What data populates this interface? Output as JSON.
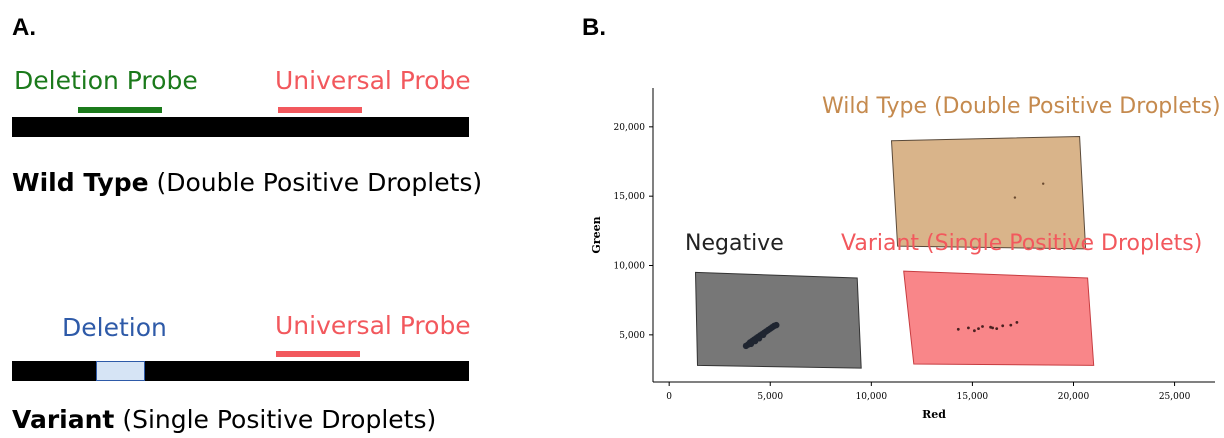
{
  "panel_a": {
    "label": "A.",
    "wild_type": {
      "probe_left": "Deletion Probe",
      "probe_right": "Universal Probe",
      "caption_bold": "Wild Type",
      "caption_rest": " (Double Positive Droplets)"
    },
    "variant": {
      "probe_left": "Deletion",
      "probe_right": "Universal Probe",
      "caption_bold": "Variant",
      "caption_rest": " (Single Positive Droplets)"
    },
    "colors": {
      "deletion_probe": "#1b7a1b",
      "universal_probe": "#f2585d",
      "deletion": "#2e5aa8",
      "deletion_box_fill": "#d6e4f5"
    }
  },
  "panel_b": {
    "label": "B.",
    "regions": {
      "wild_type": "Wild Type (Double Positive Droplets)",
      "negative": "Negative",
      "variant": "Variant (Single Positive Droplets)"
    },
    "colors": {
      "wild_type": "#c58a4e",
      "wild_type_fill": "#d9b48a",
      "negative_fill": "#777777",
      "variant": "#f2585d",
      "variant_fill": "#f98689"
    }
  },
  "chart_data": {
    "type": "scatter",
    "title": "",
    "xlabel": "Red",
    "ylabel": "Green",
    "xlim": [
      -800,
      27000
    ],
    "ylim": [
      1600,
      22800
    ],
    "x_ticks": [
      "0",
      "5,000",
      "10,000",
      "15,000",
      "20,000",
      "25,000"
    ],
    "x_tick_values": [
      0,
      5000,
      10000,
      15000,
      20000,
      25000
    ],
    "y_ticks": [
      "5,000",
      "10,000",
      "15,000",
      "20,000"
    ],
    "y_tick_values": [
      5000,
      10000,
      15000,
      20000
    ],
    "gates": [
      {
        "name": "Wild Type (Double Positive Droplets)",
        "polygon": [
          [
            11000,
            19000
          ],
          [
            20300,
            19300
          ],
          [
            20600,
            11200
          ],
          [
            11300,
            11400
          ]
        ]
      },
      {
        "name": "Negative",
        "polygon": [
          [
            1300,
            9500
          ],
          [
            9300,
            9100
          ],
          [
            9500,
            2600
          ],
          [
            1400,
            2800
          ]
        ]
      },
      {
        "name": "Variant (Single Positive Droplets)",
        "polygon": [
          [
            11600,
            9600
          ],
          [
            20700,
            9100
          ],
          [
            21000,
            2800
          ],
          [
            12100,
            2900
          ]
        ]
      }
    ],
    "series": [
      {
        "name": "Negative",
        "x": [
          3800,
          3900,
          4000,
          4100,
          4200,
          4300,
          4400,
          4500,
          4600,
          4700,
          4800,
          4900,
          5000,
          5100,
          5200,
          5300,
          4050,
          4250,
          4450,
          4650
        ],
        "y": [
          4200,
          4300,
          4450,
          4550,
          4650,
          4750,
          4850,
          4950,
          5050,
          5150,
          5250,
          5350,
          5450,
          5550,
          5650,
          5700,
          4350,
          4550,
          4750,
          5000
        ]
      },
      {
        "name": "Variant (Single Positive Droplets)",
        "x": [
          14300,
          14800,
          15100,
          15500,
          15900,
          16200,
          16500,
          16900,
          17200,
          15300,
          16000
        ],
        "y": [
          5400,
          5500,
          5300,
          5600,
          5550,
          5450,
          5650,
          5700,
          5900,
          5450,
          5500
        ]
      },
      {
        "name": "Wild Type (Double Positive Droplets)",
        "x": [
          17100,
          18500
        ],
        "y": [
          14900,
          15900
        ]
      }
    ]
  }
}
